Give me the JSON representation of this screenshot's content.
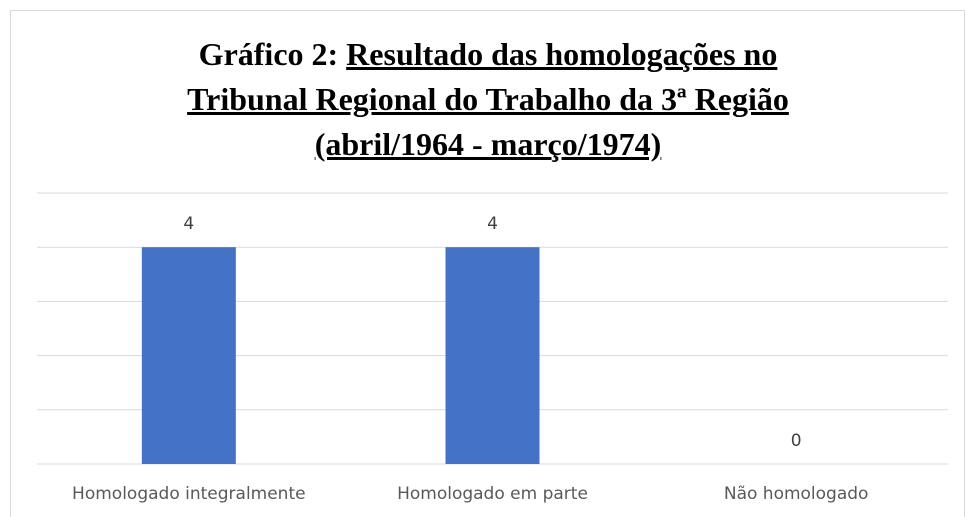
{
  "chart_data": {
    "type": "bar",
    "title_label": "Gráfico 2:",
    "title_lines": [
      "Resultado das homologações no",
      "Tribunal Regional do Trabalho da 3ª Região",
      "(abril/1964 - março/1974)"
    ],
    "categories": [
      "Homologado integralmente",
      "Homologado em parte",
      "Não homologado"
    ],
    "values": [
      4,
      4,
      0
    ],
    "color": "#4472c4",
    "ylim": [
      0,
      5
    ],
    "yticks": [
      0,
      1,
      2,
      3,
      4,
      5
    ],
    "grid": true
  }
}
